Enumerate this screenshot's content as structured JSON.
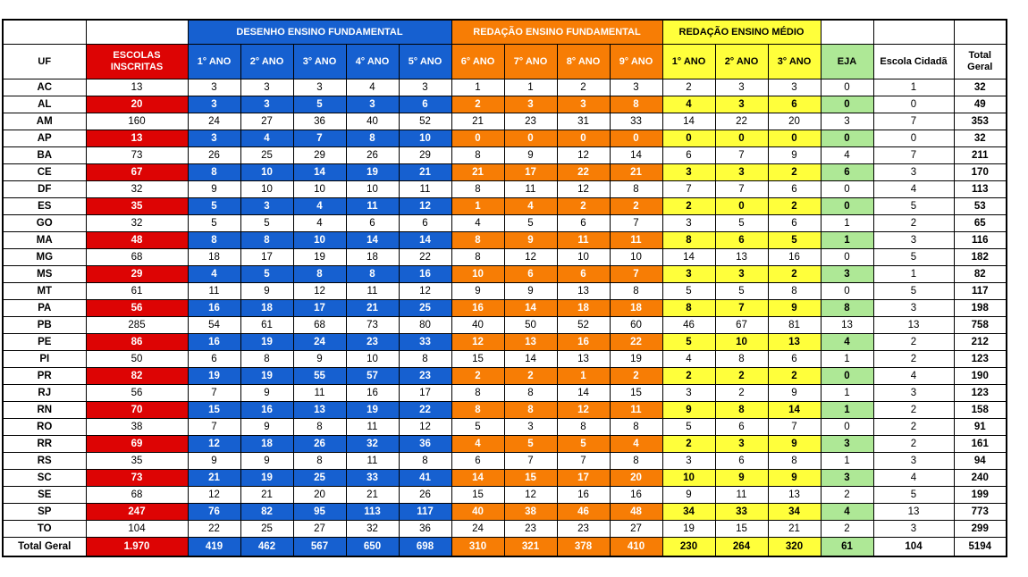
{
  "header": {
    "uf_label": "UF",
    "escolas_label_line1": "ESCOLAS",
    "escolas_label_line2": "INSCRITAS",
    "sections": [
      {
        "label": "DESENHO ENSINO FUNDAMENTAL",
        "cols": [
          "1° ANO",
          "2° ANO",
          "3° ANO",
          "4° ANO",
          "5° ANO"
        ]
      },
      {
        "label": "REDAÇÃO ENSINO FUNDAMENTAL",
        "cols": [
          "6° ANO",
          "7° ANO",
          "8° ANO",
          "9° ANO"
        ]
      },
      {
        "label": "REDAÇÃO ENSINO MÉDIO",
        "cols": [
          "1° ANO",
          "2° ANO",
          "3° ANO"
        ]
      }
    ],
    "eja_label": "EJA",
    "escola_cidada_label": "Escola Cidadã",
    "total_label_line1": "Total",
    "total_label_line2": "Geral"
  },
  "colors": {
    "blue": "#1660D0",
    "orange": "#F77D05",
    "red": "#DD0404",
    "yellow": "#FFFF3B",
    "green": "#AEE896"
  },
  "chart_data": {
    "type": "table",
    "columns": [
      "UF",
      "ESCOLAS INSCRITAS",
      "DESENHO EF 1° ANO",
      "DESENHO EF 2° ANO",
      "DESENHO EF 3° ANO",
      "DESENHO EF 4° ANO",
      "DESENHO EF 5° ANO",
      "REDAÇÃO EF 6° ANO",
      "REDAÇÃO EF 7° ANO",
      "REDAÇÃO EF 8° ANO",
      "REDAÇÃO EF 9° ANO",
      "REDAÇÃO EM 1° ANO",
      "REDAÇÃO EM 2° ANO",
      "REDAÇÃO EM 3° ANO",
      "EJA",
      "Escola Cidadã",
      "Total Geral"
    ],
    "rows": [
      {
        "uf": "AC",
        "escolas_inscritas": 13,
        "desenho_fundamental": [
          3,
          3,
          3,
          4,
          3
        ],
        "redacao_fundamental": [
          1,
          1,
          2,
          3
        ],
        "redacao_medio": [
          2,
          3,
          3
        ],
        "eja": 0,
        "escola_cidada": 1,
        "total_geral": 32
      },
      {
        "uf": "AL",
        "escolas_inscritas": 20,
        "desenho_fundamental": [
          3,
          3,
          5,
          3,
          6
        ],
        "redacao_fundamental": [
          2,
          3,
          3,
          8
        ],
        "redacao_medio": [
          4,
          3,
          6
        ],
        "eja": 0,
        "escola_cidada": 0,
        "total_geral": 49
      },
      {
        "uf": "AM",
        "escolas_inscritas": 160,
        "desenho_fundamental": [
          24,
          27,
          36,
          40,
          52
        ],
        "redacao_fundamental": [
          21,
          23,
          31,
          33
        ],
        "redacao_medio": [
          14,
          22,
          20
        ],
        "eja": 3,
        "escola_cidada": 7,
        "total_geral": 353
      },
      {
        "uf": "AP",
        "escolas_inscritas": 13,
        "desenho_fundamental": [
          3,
          4,
          7,
          8,
          10
        ],
        "redacao_fundamental": [
          0,
          0,
          0,
          0
        ],
        "redacao_medio": [
          0,
          0,
          0
        ],
        "eja": 0,
        "escola_cidada": 0,
        "total_geral": 32
      },
      {
        "uf": "BA",
        "escolas_inscritas": 73,
        "desenho_fundamental": [
          26,
          25,
          29,
          26,
          29
        ],
        "redacao_fundamental": [
          8,
          9,
          12,
          14
        ],
        "redacao_medio": [
          6,
          7,
          9
        ],
        "eja": 4,
        "escola_cidada": 7,
        "total_geral": 211
      },
      {
        "uf": "CE",
        "escolas_inscritas": 67,
        "desenho_fundamental": [
          8,
          10,
          14,
          19,
          21
        ],
        "redacao_fundamental": [
          21,
          17,
          22,
          21
        ],
        "redacao_medio": [
          3,
          3,
          2
        ],
        "eja": 6,
        "escola_cidada": 3,
        "total_geral": 170
      },
      {
        "uf": "DF",
        "escolas_inscritas": 32,
        "desenho_fundamental": [
          9,
          10,
          10,
          10,
          11
        ],
        "redacao_fundamental": [
          8,
          11,
          12,
          8
        ],
        "redacao_medio": [
          7,
          7,
          6
        ],
        "eja": 0,
        "escola_cidada": 4,
        "total_geral": 113
      },
      {
        "uf": "ES",
        "escolas_inscritas": 35,
        "desenho_fundamental": [
          5,
          3,
          4,
          11,
          12
        ],
        "redacao_fundamental": [
          1,
          4,
          2,
          2
        ],
        "redacao_medio": [
          2,
          0,
          2
        ],
        "eja": 0,
        "escola_cidada": 5,
        "total_geral": 53
      },
      {
        "uf": "GO",
        "escolas_inscritas": 32,
        "desenho_fundamental": [
          5,
          5,
          4,
          6,
          6
        ],
        "redacao_fundamental": [
          4,
          5,
          6,
          7
        ],
        "redacao_medio": [
          3,
          5,
          6
        ],
        "eja": 1,
        "escola_cidada": 2,
        "total_geral": 65
      },
      {
        "uf": "MA",
        "escolas_inscritas": 48,
        "desenho_fundamental": [
          8,
          8,
          10,
          14,
          14
        ],
        "redacao_fundamental": [
          8,
          9,
          11,
          11
        ],
        "redacao_medio": [
          8,
          6,
          5
        ],
        "eja": 1,
        "escola_cidada": 3,
        "total_geral": 116
      },
      {
        "uf": "MG",
        "escolas_inscritas": 68,
        "desenho_fundamental": [
          18,
          17,
          19,
          18,
          22
        ],
        "redacao_fundamental": [
          8,
          12,
          10,
          10
        ],
        "redacao_medio": [
          14,
          13,
          16
        ],
        "eja": 0,
        "escola_cidada": 5,
        "total_geral": 182
      },
      {
        "uf": "MS",
        "escolas_inscritas": 29,
        "desenho_fundamental": [
          4,
          5,
          8,
          8,
          16
        ],
        "redacao_fundamental": [
          10,
          6,
          6,
          7
        ],
        "redacao_medio": [
          3,
          3,
          2
        ],
        "eja": 3,
        "escola_cidada": 1,
        "total_geral": 82
      },
      {
        "uf": "MT",
        "escolas_inscritas": 61,
        "desenho_fundamental": [
          11,
          9,
          12,
          11,
          12
        ],
        "redacao_fundamental": [
          9,
          9,
          13,
          8
        ],
        "redacao_medio": [
          5,
          5,
          8
        ],
        "eja": 0,
        "escola_cidada": 5,
        "total_geral": 117
      },
      {
        "uf": "PA",
        "escolas_inscritas": 56,
        "desenho_fundamental": [
          16,
          18,
          17,
          21,
          25
        ],
        "redacao_fundamental": [
          16,
          14,
          18,
          18
        ],
        "redacao_medio": [
          8,
          7,
          9
        ],
        "eja": 8,
        "escola_cidada": 3,
        "total_geral": 198
      },
      {
        "uf": "PB",
        "escolas_inscritas": 285,
        "desenho_fundamental": [
          54,
          61,
          68,
          73,
          80
        ],
        "redacao_fundamental": [
          40,
          50,
          52,
          60
        ],
        "redacao_medio": [
          46,
          67,
          81
        ],
        "eja": 13,
        "escola_cidada": 13,
        "total_geral": 758
      },
      {
        "uf": "PE",
        "escolas_inscritas": 86,
        "desenho_fundamental": [
          16,
          19,
          24,
          23,
          33
        ],
        "redacao_fundamental": [
          12,
          13,
          16,
          22
        ],
        "redacao_medio": [
          5,
          10,
          13
        ],
        "eja": 4,
        "escola_cidada": 2,
        "total_geral": 212
      },
      {
        "uf": "PI",
        "escolas_inscritas": 50,
        "desenho_fundamental": [
          6,
          8,
          9,
          10,
          8
        ],
        "redacao_fundamental": [
          15,
          14,
          13,
          19
        ],
        "redacao_medio": [
          4,
          8,
          6
        ],
        "eja": 1,
        "escola_cidada": 2,
        "total_geral": 123
      },
      {
        "uf": "PR",
        "escolas_inscritas": 82,
        "desenho_fundamental": [
          19,
          19,
          55,
          57,
          23
        ],
        "redacao_fundamental": [
          2,
          2,
          1,
          2
        ],
        "redacao_medio": [
          2,
          2,
          2
        ],
        "eja": 0,
        "escola_cidada": 4,
        "total_geral": 190
      },
      {
        "uf": "RJ",
        "escolas_inscritas": 56,
        "desenho_fundamental": [
          7,
          9,
          11,
          16,
          17
        ],
        "redacao_fundamental": [
          8,
          8,
          14,
          15
        ],
        "redacao_medio": [
          3,
          2,
          9
        ],
        "eja": 1,
        "escola_cidada": 3,
        "total_geral": 123
      },
      {
        "uf": "RN",
        "escolas_inscritas": 70,
        "desenho_fundamental": [
          15,
          16,
          13,
          19,
          22
        ],
        "redacao_fundamental": [
          8,
          8,
          12,
          11
        ],
        "redacao_medio": [
          9,
          8,
          14
        ],
        "eja": 1,
        "escola_cidada": 2,
        "total_geral": 158
      },
      {
        "uf": "RO",
        "escolas_inscritas": 38,
        "desenho_fundamental": [
          7,
          9,
          8,
          11,
          12
        ],
        "redacao_fundamental": [
          5,
          3,
          8,
          8
        ],
        "redacao_medio": [
          5,
          6,
          7
        ],
        "eja": 0,
        "escola_cidada": 2,
        "total_geral": 91
      },
      {
        "uf": "RR",
        "escolas_inscritas": 69,
        "desenho_fundamental": [
          12,
          18,
          26,
          32,
          36
        ],
        "redacao_fundamental": [
          4,
          5,
          5,
          4
        ],
        "redacao_medio": [
          2,
          3,
          9
        ],
        "eja": 3,
        "escola_cidada": 2,
        "total_geral": 161
      },
      {
        "uf": "RS",
        "escolas_inscritas": 35,
        "desenho_fundamental": [
          9,
          9,
          8,
          11,
          8
        ],
        "redacao_fundamental": [
          6,
          7,
          7,
          8
        ],
        "redacao_medio": [
          3,
          6,
          8
        ],
        "eja": 1,
        "escola_cidada": 3,
        "total_geral": 94
      },
      {
        "uf": "SC",
        "escolas_inscritas": 73,
        "desenho_fundamental": [
          21,
          19,
          25,
          33,
          41
        ],
        "redacao_fundamental": [
          14,
          15,
          17,
          20
        ],
        "redacao_medio": [
          10,
          9,
          9
        ],
        "eja": 3,
        "escola_cidada": 4,
        "total_geral": 240
      },
      {
        "uf": "SE",
        "escolas_inscritas": 68,
        "desenho_fundamental": [
          12,
          21,
          20,
          21,
          26
        ],
        "redacao_fundamental": [
          15,
          12,
          16,
          16
        ],
        "redacao_medio": [
          9,
          11,
          13
        ],
        "eja": 2,
        "escola_cidada": 5,
        "total_geral": 199
      },
      {
        "uf": "SP",
        "escolas_inscritas": 247,
        "desenho_fundamental": [
          76,
          82,
          95,
          113,
          117
        ],
        "redacao_fundamental": [
          40,
          38,
          46,
          48
        ],
        "redacao_medio": [
          34,
          33,
          34
        ],
        "eja": 4,
        "escola_cidada": 13,
        "total_geral": 773
      },
      {
        "uf": "TO",
        "escolas_inscritas": 104,
        "desenho_fundamental": [
          22,
          25,
          27,
          32,
          36
        ],
        "redacao_fundamental": [
          24,
          23,
          23,
          27
        ],
        "redacao_medio": [
          19,
          15,
          21
        ],
        "eja": 2,
        "escola_cidada": 3,
        "total_geral": 299
      }
    ],
    "total_row": {
      "label": "Total Geral",
      "escolas_inscritas": "1.970",
      "desenho_fundamental": [
        419,
        462,
        567,
        650,
        698
      ],
      "redacao_fundamental": [
        310,
        321,
        378,
        410
      ],
      "redacao_medio": [
        230,
        264,
        320
      ],
      "eja": 61,
      "escola_cidada": 104,
      "total_geral": 5194
    }
  }
}
